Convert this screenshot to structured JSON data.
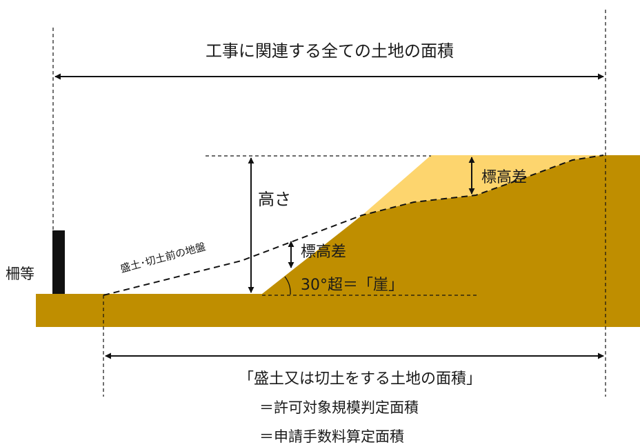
{
  "labels": {
    "total_area": "工事に関連する全ての土地の面積",
    "height": "高さ",
    "elevation_diff_upper": "標高差",
    "elevation_diff_lower": "標高差",
    "original_ground": "盛土･切土前の地盤",
    "fence": "柵等",
    "cliff": "30°超＝「崖」",
    "work_area": "「盛土又は切土をする土地の面積」",
    "equals_permit": "＝許可対象規模判定面積",
    "equals_fee": "＝申請手数料算定面積"
  },
  "colors": {
    "ground": "#bf8e00",
    "fill": "#fdd56e",
    "fence": "#111111",
    "line": "#111111"
  }
}
